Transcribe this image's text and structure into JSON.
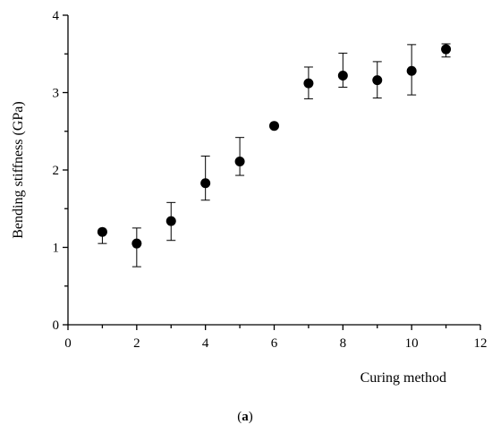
{
  "caption": {
    "open": "(",
    "letter": "a",
    "close": ")"
  },
  "chart_data": {
    "type": "scatter",
    "title": "",
    "xlabel": "Curing method",
    "ylabel": "Bending stiffness (GPa)",
    "xlim": [
      0,
      12
    ],
    "ylim": [
      0,
      4
    ],
    "xticks": [
      0,
      2,
      4,
      6,
      8,
      10,
      12
    ],
    "yticks": [
      0,
      1,
      2,
      3,
      4
    ],
    "grid": false,
    "legend": "none",
    "marker_color": "#000000",
    "series": [
      {
        "x": [
          1,
          2,
          3,
          4,
          5,
          6,
          7,
          8,
          9,
          10,
          11
        ],
        "y": [
          1.2,
          1.05,
          1.34,
          1.83,
          2.11,
          2.57,
          3.12,
          3.22,
          3.16,
          3.28,
          3.56
        ],
        "err_low": [
          0.15,
          0.3,
          0.25,
          0.22,
          0.18,
          0.0,
          0.2,
          0.15,
          0.23,
          0.31,
          0.1
        ],
        "err_high": [
          0.0,
          0.2,
          0.24,
          0.35,
          0.31,
          0.0,
          0.21,
          0.29,
          0.24,
          0.34,
          0.07
        ]
      }
    ]
  }
}
